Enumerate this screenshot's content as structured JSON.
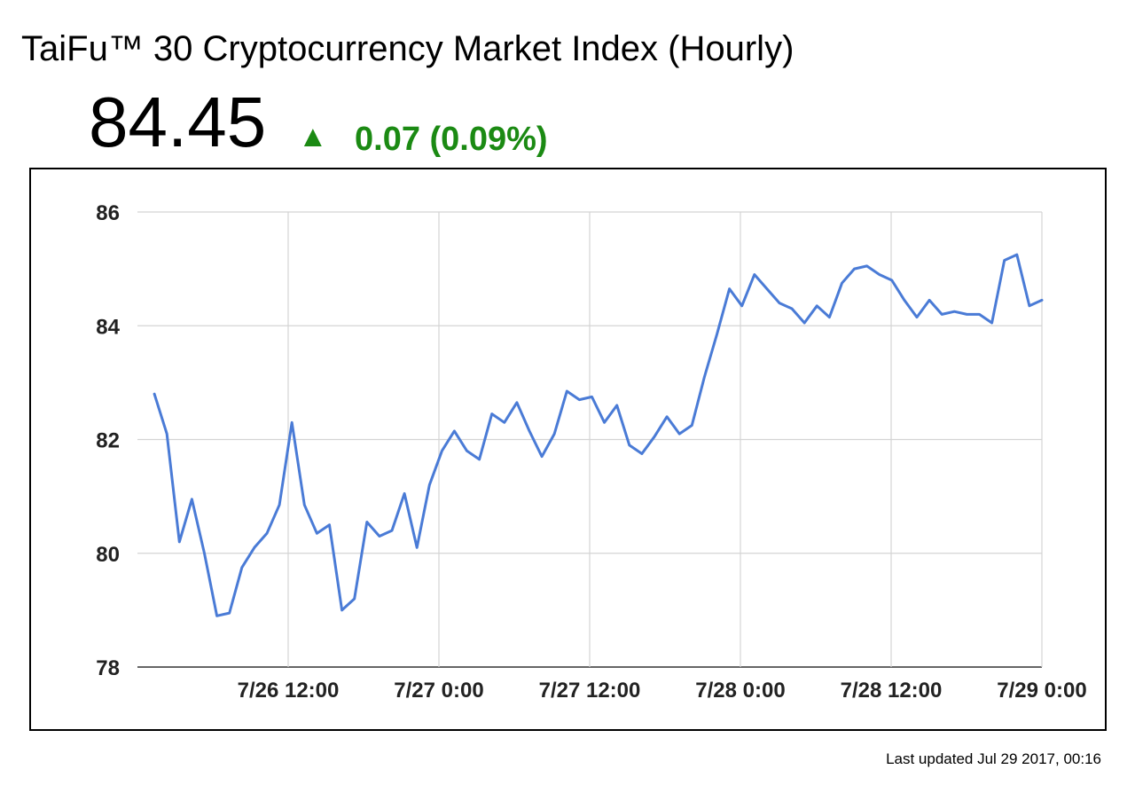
{
  "header": {
    "title": "TaiFu™ 30 Cryptocurrency Market Index (Hourly)",
    "price": "84.45",
    "arrow": "▲",
    "change": "0.07 (0.09%)"
  },
  "footer": {
    "updated": "Last updated Jul 29 2017, 00:16"
  },
  "colors": {
    "line": "#4a7bd6",
    "positive": "#1b8a13",
    "grid": "#d4d4d4"
  },
  "chart_data": {
    "type": "line",
    "title": "",
    "xlabel": "",
    "ylabel": "",
    "ylim": [
      78,
      86
    ],
    "y_ticks": [
      "78",
      "80",
      "82",
      "84",
      "86"
    ],
    "x_ticks": [
      {
        "label": "7/26 12:00",
        "hours": 12
      },
      {
        "label": "7/27 0:00",
        "hours": 24
      },
      {
        "label": "7/27 12:00",
        "hours": 36
      },
      {
        "label": "7/28 0:00",
        "hours": 48
      },
      {
        "label": "7/28 12:00",
        "hours": 60
      },
      {
        "label": "7/29 0:00",
        "hours": 72
      }
    ],
    "x_range_hours": [
      1.35,
      72
    ],
    "grid": true,
    "legend": "none",
    "series": [
      {
        "values": [
          82.8,
          82.1,
          80.2,
          80.95,
          80.0,
          78.9,
          78.95,
          79.75,
          80.1,
          80.35,
          80.85,
          82.3,
          80.85,
          80.35,
          80.5,
          79.0,
          79.2,
          80.55,
          80.3,
          80.4,
          81.05,
          80.1,
          81.2,
          81.8,
          82.15,
          81.8,
          81.65,
          82.45,
          82.3,
          82.65,
          82.15,
          81.7,
          82.1,
          82.85,
          82.7,
          82.75,
          82.3,
          82.6,
          81.9,
          81.75,
          82.05,
          82.4,
          82.1,
          82.25,
          83.1,
          83.85,
          84.65,
          84.35,
          84.9,
          84.65,
          84.4,
          84.3,
          84.05,
          84.35,
          84.15,
          84.75,
          85.0,
          85.05,
          84.9,
          84.8,
          84.45,
          84.15,
          84.45,
          84.2,
          84.25,
          84.2,
          84.2,
          84.05,
          85.15,
          85.25,
          84.35,
          84.45
        ]
      }
    ]
  }
}
